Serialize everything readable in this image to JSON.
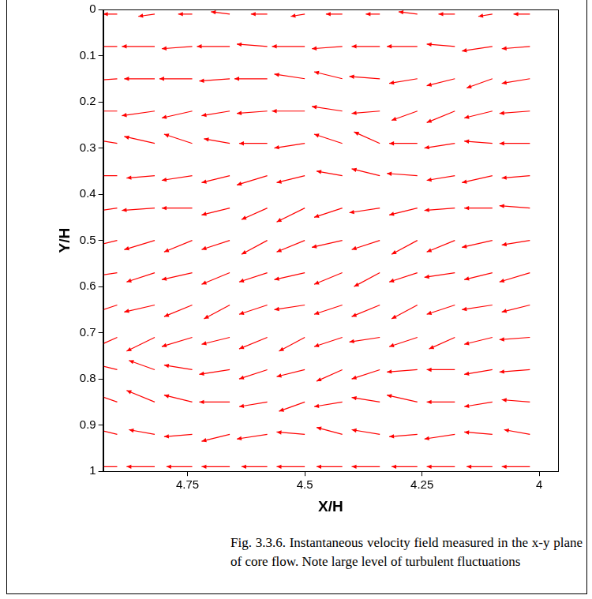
{
  "chart_data": {
    "type": "quiver",
    "x_label": "X/H",
    "y_label": "Y/H",
    "color": "#ff0000",
    "grid": false,
    "xlim": [
      4.93,
      3.96
    ],
    "ylim": [
      1,
      0
    ],
    "xticks": [
      4.75,
      4.5,
      4.25,
      4
    ],
    "yticks": [
      0,
      0.1,
      0.2,
      0.3,
      0.4,
      0.5,
      0.6,
      0.7,
      0.8,
      0.9,
      1
    ],
    "x": [
      4.9,
      4.82,
      4.74,
      4.66,
      4.58,
      4.5,
      4.42,
      4.34,
      4.26,
      4.18,
      4.1,
      4.02
    ],
    "y": [
      0.01,
      0.08,
      0.15,
      0.22,
      0.29,
      0.36,
      0.43,
      0.5,
      0.57,
      0.64,
      0.71,
      0.78,
      0.85,
      0.92,
      0.99
    ],
    "u": [
      [
        0.03,
        0.035,
        0.03,
        0.04,
        0.035,
        0.03,
        0.035,
        0.03,
        0.04,
        0.035,
        0.03,
        0.035
      ],
      [
        0.065,
        0.07,
        0.065,
        0.07,
        0.065,
        0.07,
        0.065,
        0.06,
        0.065,
        0.06,
        0.065,
        0.06
      ],
      [
        0.07,
        0.065,
        0.07,
        0.065,
        0.07,
        0.065,
        0.06,
        0.065,
        0.06,
        0.06,
        0.055,
        0.06
      ],
      [
        0.065,
        0.07,
        0.065,
        0.06,
        0.065,
        0.07,
        0.065,
        0.06,
        0.055,
        0.06,
        0.06,
        0.065
      ],
      [
        0.06,
        0.065,
        0.06,
        0.055,
        0.06,
        0.065,
        0.06,
        0.055,
        0.06,
        0.065,
        0.06,
        0.065
      ],
      [
        0.065,
        0.06,
        0.065,
        0.06,
        0.065,
        0.06,
        0.055,
        0.06,
        0.065,
        0.06,
        0.065,
        0.06
      ],
      [
        0.065,
        0.07,
        0.065,
        0.06,
        0.055,
        0.06,
        0.06,
        0.065,
        0.06,
        0.065,
        0.06,
        0.065
      ],
      [
        0.06,
        0.065,
        0.06,
        0.06,
        0.055,
        0.06,
        0.065,
        0.06,
        0.055,
        0.06,
        0.065,
        0.06
      ],
      [
        0.065,
        0.06,
        0.065,
        0.06,
        0.06,
        0.065,
        0.06,
        0.055,
        0.06,
        0.065,
        0.06,
        0.065
      ],
      [
        0.06,
        0.065,
        0.06,
        0.055,
        0.06,
        0.065,
        0.06,
        0.06,
        0.055,
        0.06,
        0.065,
        0.06
      ],
      [
        0.055,
        0.06,
        0.065,
        0.06,
        0.06,
        0.055,
        0.06,
        0.065,
        0.06,
        0.055,
        0.06,
        0.065
      ],
      [
        0.06,
        0.055,
        0.06,
        0.065,
        0.06,
        0.06,
        0.055,
        0.06,
        0.065,
        0.06,
        0.06,
        0.065
      ],
      [
        0.055,
        0.06,
        0.06,
        0.065,
        0.06,
        0.055,
        0.06,
        0.06,
        0.065,
        0.06,
        0.06,
        0.06
      ],
      [
        0.06,
        0.055,
        0.06,
        0.06,
        0.065,
        0.06,
        0.055,
        0.06,
        0.06,
        0.065,
        0.06,
        0.055
      ],
      [
        0.055,
        0.06,
        0.055,
        0.06,
        0.055,
        0.06,
        0.055,
        0.06,
        0.055,
        0.06,
        0.055,
        0.06
      ]
    ],
    "v": [
      [
        0,
        0.005,
        0,
        -0.005,
        0,
        0.005,
        0,
        0,
        -0.005,
        0,
        0.005,
        0
      ],
      [
        0,
        0,
        0.005,
        0,
        -0.005,
        0,
        0.005,
        0,
        0,
        -0.005,
        0.01,
        0.005
      ],
      [
        0.005,
        0,
        0,
        0.005,
        0,
        -0.01,
        -0.015,
        -0.005,
        0.01,
        0.015,
        0.02,
        0.01
      ],
      [
        0,
        0.01,
        0.015,
        0.01,
        0.005,
        0,
        -0.01,
        0.005,
        0.02,
        0.025,
        0.015,
        0.005
      ],
      [
        -0.01,
        -0.015,
        -0.02,
        -0.01,
        0,
        0.01,
        -0.02,
        -0.025,
        0,
        0.01,
        -0.005,
        0
      ],
      [
        0,
        0.005,
        0.01,
        0.015,
        0.02,
        0.015,
        -0.01,
        -0.015,
        -0.005,
        0.01,
        0.015,
        0.005
      ],
      [
        0.01,
        0.005,
        0,
        0.015,
        0.025,
        0.03,
        0.02,
        0.01,
        0.015,
        0.005,
        0,
        -0.005
      ],
      [
        0.015,
        0.02,
        0.025,
        0.02,
        0.03,
        0.025,
        0.015,
        0.02,
        0.03,
        0.025,
        0.015,
        0.01
      ],
      [
        0.01,
        0.02,
        0.015,
        0.025,
        0.02,
        0.015,
        0.025,
        0.03,
        0.02,
        0.01,
        0.015,
        0.02
      ],
      [
        0.02,
        0.015,
        0.025,
        0.03,
        0.02,
        0.01,
        0.02,
        0.025,
        0.03,
        0.02,
        0.01,
        0.015
      ],
      [
        0.025,
        0.03,
        0.02,
        0.015,
        0.025,
        0.03,
        0.02,
        0.01,
        0.02,
        0.025,
        0.015,
        0.005
      ],
      [
        -0.015,
        -0.02,
        -0.01,
        0.01,
        0.02,
        0.015,
        0.025,
        0.02,
        0.005,
        0,
        0.01,
        0.005
      ],
      [
        -0.02,
        -0.025,
        -0.015,
        0,
        0.01,
        0.02,
        0.01,
        -0.01,
        -0.015,
        0,
        0.01,
        -0.005
      ],
      [
        -0.015,
        -0.01,
        0.005,
        0.015,
        0.01,
        -0.005,
        -0.015,
        -0.01,
        0.005,
        0.01,
        -0.005,
        -0.01
      ],
      [
        0,
        0,
        0,
        0,
        0,
        0,
        0,
        0,
        0,
        0,
        0,
        0
      ]
    ]
  },
  "caption": "Fig. 3.3.6. Instantaneous velocity field measured in the x-y plane of core flow. Note large level of turbulent fluctuations"
}
